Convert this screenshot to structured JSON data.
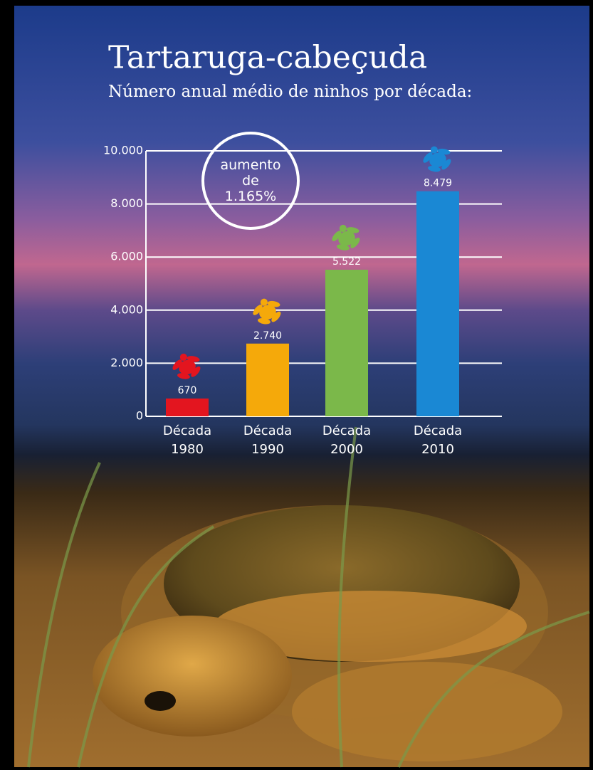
{
  "chart_data": {
    "type": "bar",
    "title": "Tartaruga-cabeçuda",
    "subtitle": "Número anual médio de ninhos por década:",
    "categories": [
      "Década 1980",
      "Década 1990",
      "Década 2000",
      "Década 2010"
    ],
    "values": [
      670,
      2740,
      5522,
      8479
    ],
    "value_labels": [
      "670",
      "2.740",
      "5.522",
      "8.479"
    ],
    "colors": [
      "#e3151f",
      "#f5a90a",
      "#7bb84a",
      "#1a88d4"
    ],
    "ylim": [
      0,
      10000
    ],
    "yticks": [
      0,
      {
        "value": 2000,
        "label": "2.000"
      },
      {
        "value": 4000,
        "label": "4.000"
      },
      {
        "value": 6000,
        "label": "6.000"
      },
      {
        "value": 8000,
        "label": "8.000"
      },
      {
        "value": 10000,
        "label": "10.000"
      }
    ],
    "grid": true,
    "annotation": "aumento de 1.165%"
  }
}
